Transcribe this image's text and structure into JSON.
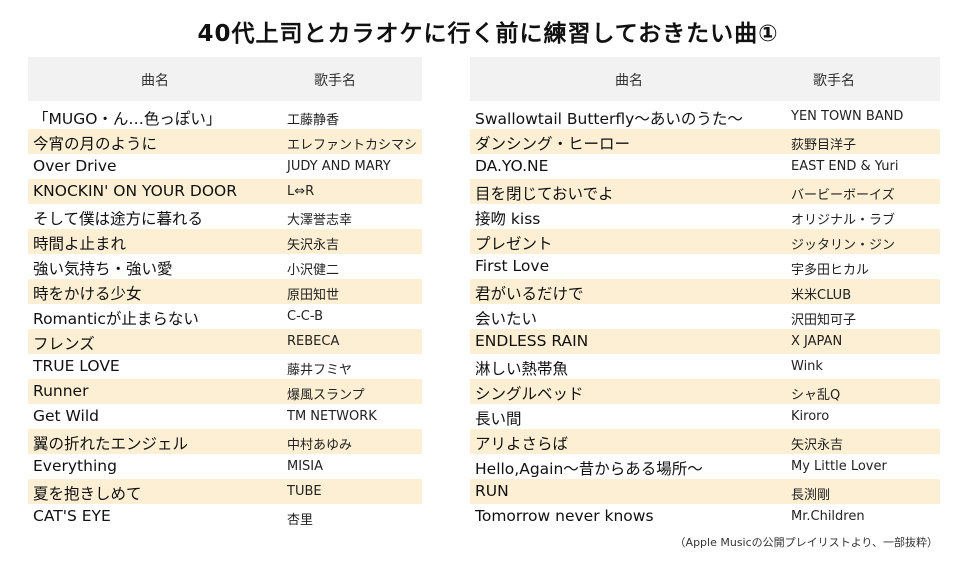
{
  "title": "40代上司とカラオケに行く前に練習しておきたい曲①",
  "headers": {
    "song": "曲名",
    "artist": "歌手名"
  },
  "left": [
    {
      "song": "「MUGO・ん…色っぽい」",
      "artist": "工藤静香"
    },
    {
      "song": "今宵の月のように",
      "artist": "エレファントカシマシ"
    },
    {
      "song": "Over Drive",
      "artist": "JUDY AND MARY"
    },
    {
      "song": "KNOCKIN' ON YOUR DOOR",
      "artist": "L⇔R"
    },
    {
      "song": "そして僕は途方に暮れる",
      "artist": "大澤誉志幸"
    },
    {
      "song": "時間よ止まれ",
      "artist": "矢沢永吉"
    },
    {
      "song": "強い気持ち・強い愛",
      "artist": "小沢健二"
    },
    {
      "song": "時をかける少女",
      "artist": "原田知世"
    },
    {
      "song": "Romanticが止まらない",
      "artist": "C-C-B"
    },
    {
      "song": "フレンズ",
      "artist": "REBECA"
    },
    {
      "song": "TRUE LOVE",
      "artist": "藤井フミヤ"
    },
    {
      "song": "Runner",
      "artist": "爆風スランプ"
    },
    {
      "song": "Get Wild",
      "artist": "TM NETWORK"
    },
    {
      "song": "翼の折れたエンジェル",
      "artist": "中村あゆみ"
    },
    {
      "song": "Everything",
      "artist": "MISIA"
    },
    {
      "song": "夏を抱きしめて",
      "artist": "TUBE"
    },
    {
      "song": "CAT'S EYE",
      "artist": "杏里"
    }
  ],
  "right": [
    {
      "song": "Swallowtail Butterfly～あいのうた～",
      "artist": "YEN TOWN BAND"
    },
    {
      "song": "ダンシング・ヒーロー",
      "artist": "荻野目洋子"
    },
    {
      "song": "DA.YO.NE",
      "artist": "EAST END & Yuri"
    },
    {
      "song": "目を閉じておいでよ",
      "artist": "バービーボーイズ"
    },
    {
      "song": "接吻 kiss",
      "artist": "オリジナル・ラブ"
    },
    {
      "song": "プレゼント",
      "artist": "ジッタリン・ジン"
    },
    {
      "song": "First Love",
      "artist": "宇多田ヒカル"
    },
    {
      "song": "君がいるだけで",
      "artist": "米米CLUB"
    },
    {
      "song": "会いたい",
      "artist": "沢田知可子"
    },
    {
      "song": "ENDLESS RAIN",
      "artist": "X JAPAN"
    },
    {
      "song": "淋しい熱帯魚",
      "artist": "Wink"
    },
    {
      "song": "シングルベッド",
      "artist": "シャ乱Q"
    },
    {
      "song": "長い間",
      "artist": "Kiroro"
    },
    {
      "song": "アリよさらば",
      "artist": "矢沢永吉"
    },
    {
      "song": "Hello,Again～昔からある場所～",
      "artist": "My Little Lover"
    },
    {
      "song": "RUN",
      "artist": "長渕剛"
    },
    {
      "song": "Tomorrow never knows",
      "artist": "Mr.Children"
    }
  ],
  "note": "（Apple Musicの公開プレイリストより、一部抜粋）"
}
